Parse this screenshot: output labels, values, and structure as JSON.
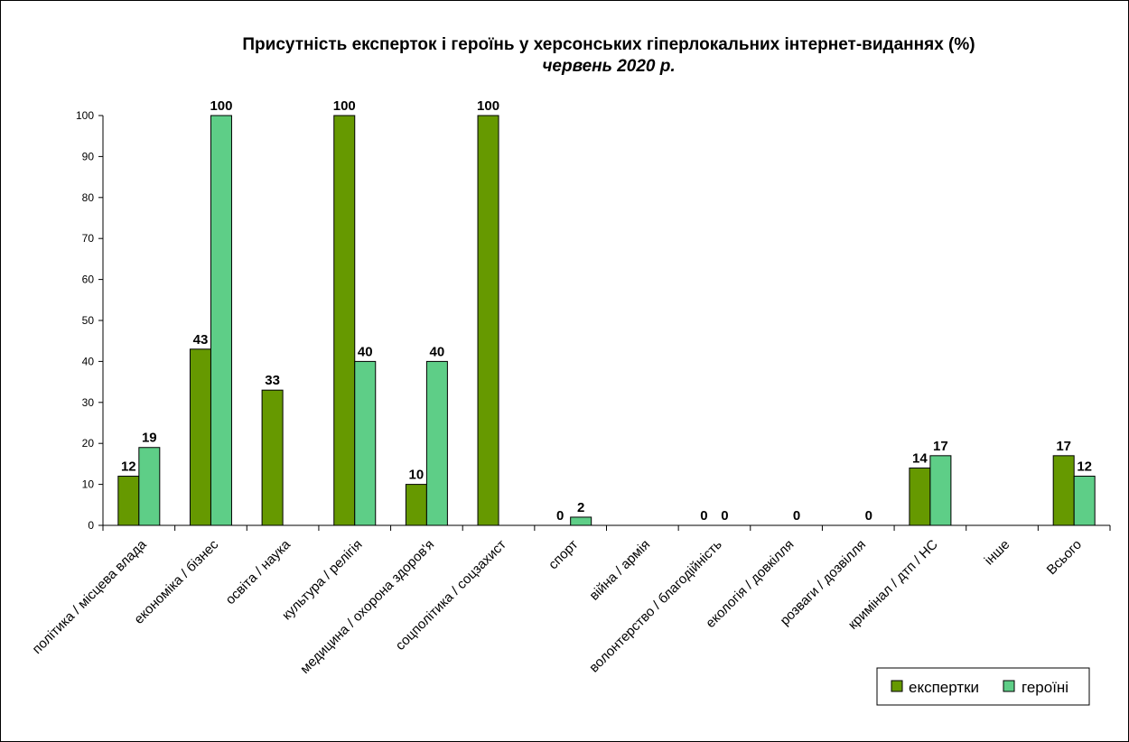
{
  "chart_data": {
    "type": "bar",
    "title": "Присутність експерток і героїнь у херсонських гіперлокальних інтернет-виданнях (%)",
    "subtitle": "червень 2020 р.",
    "xlabel": "",
    "ylabel": "",
    "ylim": [
      0,
      100
    ],
    "yticks": [
      "0",
      "10",
      "20",
      "30",
      "40",
      "50",
      "60",
      "70",
      "80",
      "90",
      "100"
    ],
    "grid": false,
    "legend_position": "bottom-right",
    "categories": [
      "політика / місцева влада",
      "економіка / бізнес",
      "освіта / наука",
      "культура / релігія",
      "медицина / охорона здоров'я",
      "соцполітика / соцзахист",
      "спорт",
      "війна / армія",
      "волонтерство / благодійність",
      "екологія / довкілля",
      "розваги / дозвілля",
      "кримінал / дтп / НС",
      "інше",
      "Всього"
    ],
    "series": [
      {
        "name": "експертки",
        "color": "#669900",
        "values": [
          12,
          43,
          33,
          100,
          10,
          100,
          0,
          null,
          0,
          null,
          null,
          14,
          null,
          17
        ],
        "labels": [
          "12",
          "43",
          "33",
          "100",
          "10",
          "100",
          "0",
          "",
          "0",
          "",
          "",
          "14",
          "",
          "17"
        ]
      },
      {
        "name": "героїні",
        "color": "#5ECE87",
        "values": [
          19,
          100,
          null,
          40,
          40,
          null,
          2,
          null,
          0,
          0,
          0,
          17,
          null,
          12
        ],
        "labels": [
          "19",
          "100",
          "",
          "40",
          "40",
          "",
          "2",
          "",
          "0",
          "0",
          "0",
          "17",
          "",
          "12"
        ]
      }
    ]
  }
}
